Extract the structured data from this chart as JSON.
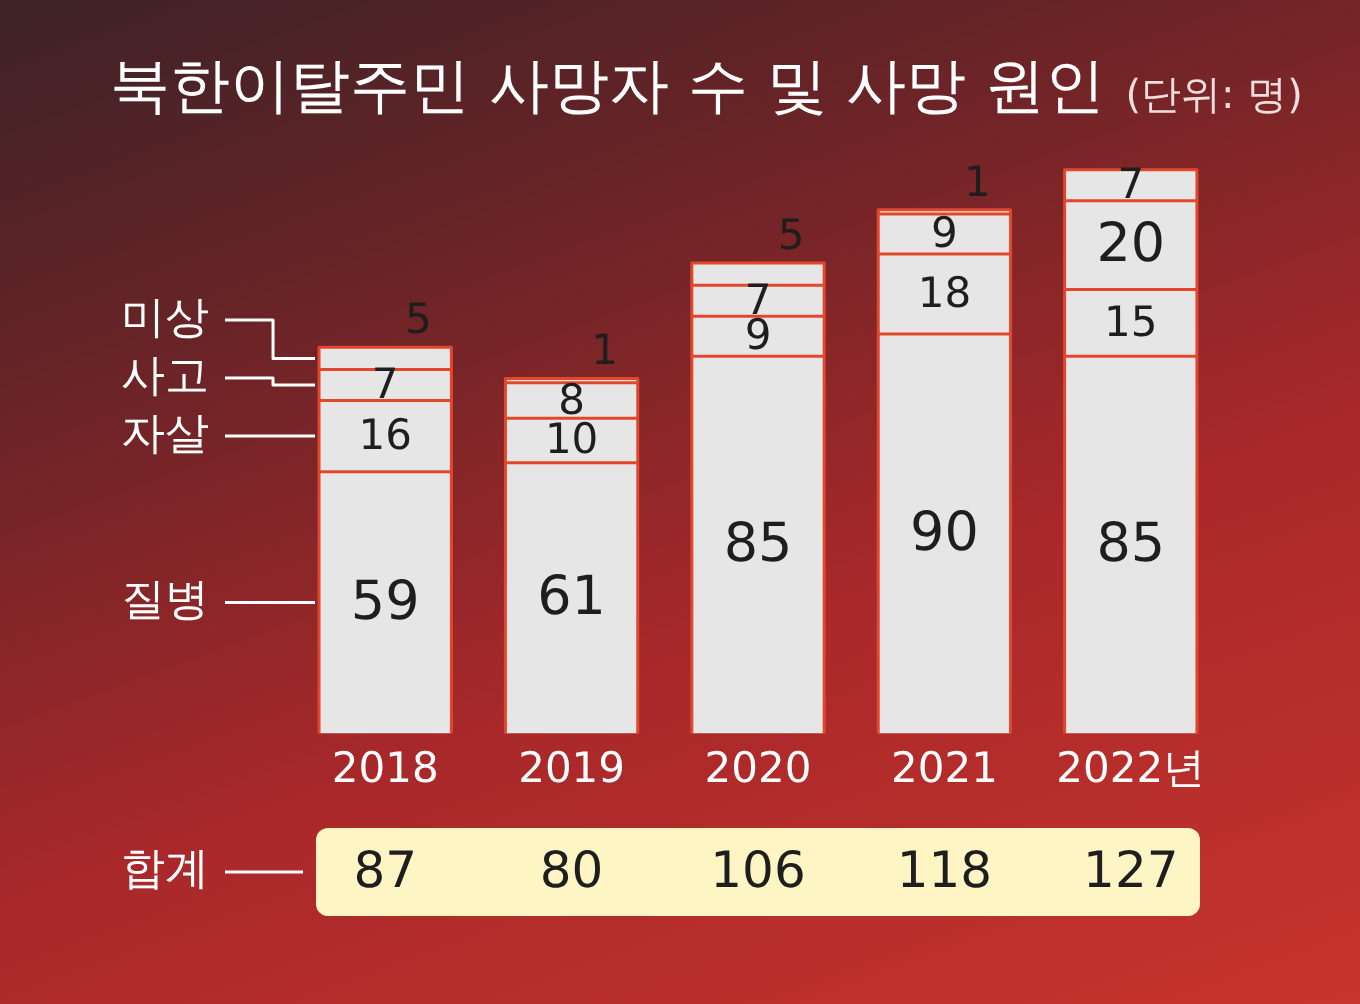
{
  "chart_data": {
    "type": "bar",
    "title": "북한이탈주민 사망자 수 및 사망 원인",
    "subtitle": "(단위: 명)",
    "categories": [
      "2018",
      "2019",
      "2020",
      "2021",
      "2022년"
    ],
    "stacked": true,
    "series": [
      {
        "name": "질병",
        "color": "#e6e6e6",
        "values": [
          59,
          61,
          85,
          90,
          85
        ]
      },
      {
        "name": "자살",
        "color": "#e6e6e6",
        "values": [
          16,
          10,
          9,
          18,
          15
        ]
      },
      {
        "name": "사고",
        "color": "#e6e6e6",
        "values": [
          7,
          8,
          7,
          9,
          20
        ]
      },
      {
        "name": "미상",
        "color": "#e6e6e6",
        "values": [
          5,
          1,
          5,
          1,
          7
        ]
      }
    ],
    "tick_labels": "x",
    "grid": false,
    "legend": false,
    "data_labels": true,
    "totals": [
      "87",
      "80",
      "106",
      "118",
      "127"
    ],
    "annotations": [
      "합계"
    ]
  }
}
